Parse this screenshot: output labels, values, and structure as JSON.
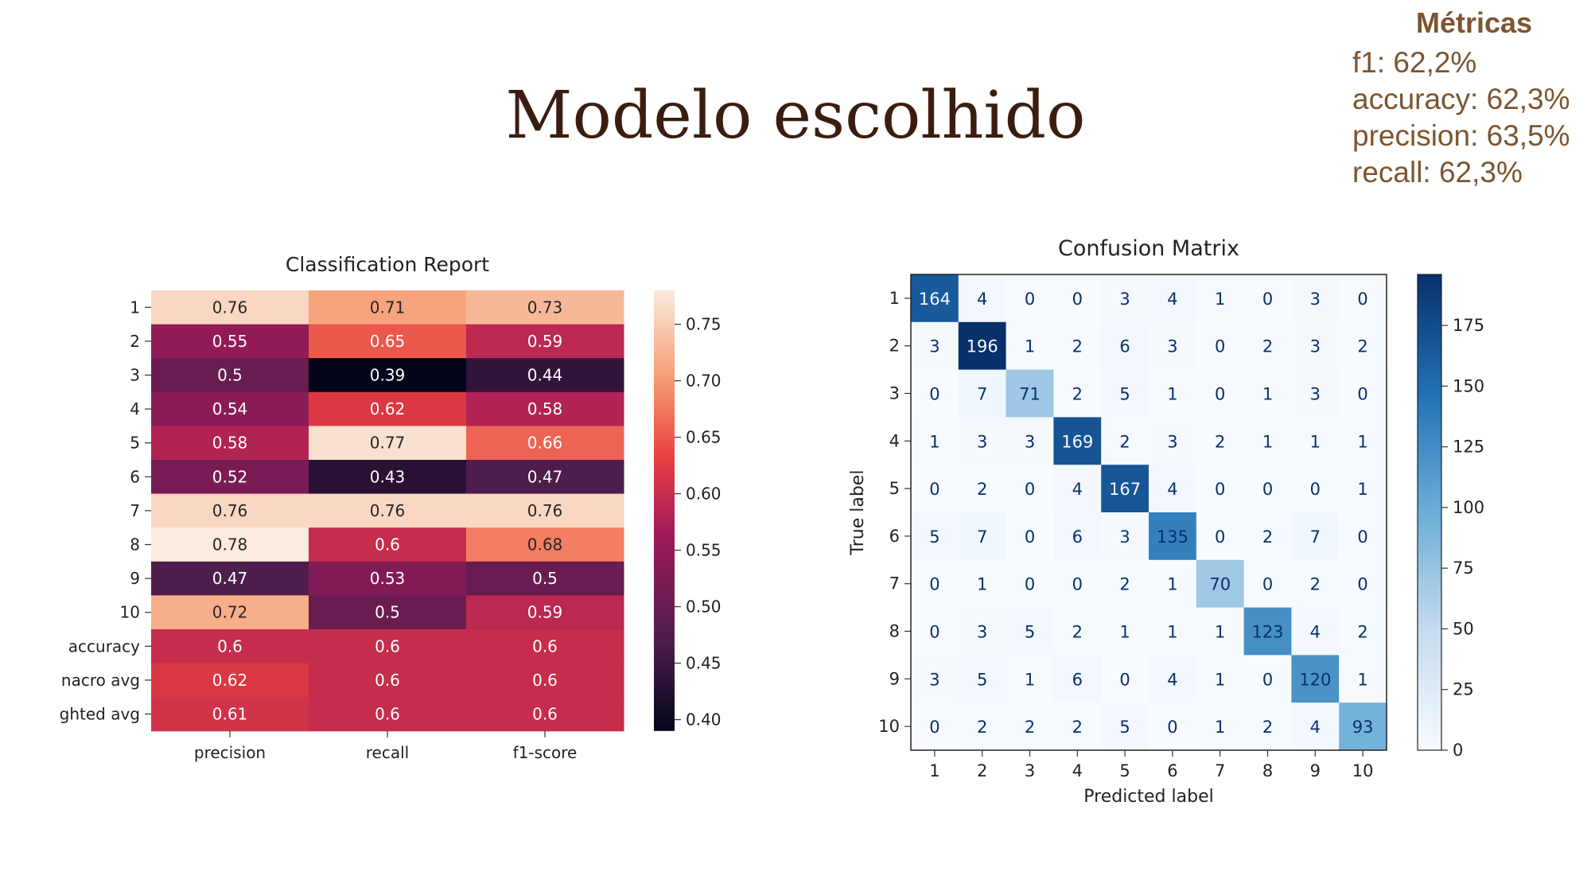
{
  "slide": {
    "title": "Modelo escolhido",
    "metrics_heading": "Métricas",
    "metrics": [
      {
        "label": "f1:",
        "value": "62,2%"
      },
      {
        "label": "accuracy:",
        "value": "62,3%"
      },
      {
        "label": "precision:",
        "value": "63,5%"
      },
      {
        "label": "recall:",
        "value": "62,3%"
      }
    ]
  },
  "chart_data": [
    {
      "type": "heatmap",
      "title": "Classification Report",
      "rows": [
        "1",
        "2",
        "3",
        "4",
        "5",
        "6",
        "7",
        "8",
        "9",
        "10",
        "accuracy",
        "macro avg",
        "weighted avg"
      ],
      "row_labels_shown": [
        "1",
        "2",
        "3",
        "4",
        "5",
        "6",
        "7",
        "8",
        "9",
        "10",
        "accuracy",
        "nacro avg",
        "ghted avg"
      ],
      "columns": [
        "precision",
        "recall",
        "f1-score"
      ],
      "values": [
        [
          0.76,
          0.71,
          0.73
        ],
        [
          0.55,
          0.65,
          0.59
        ],
        [
          0.5,
          0.39,
          0.44
        ],
        [
          0.54,
          0.62,
          0.58
        ],
        [
          0.58,
          0.77,
          0.66
        ],
        [
          0.52,
          0.43,
          0.47
        ],
        [
          0.76,
          0.76,
          0.76
        ],
        [
          0.78,
          0.6,
          0.68
        ],
        [
          0.47,
          0.53,
          0.5
        ],
        [
          0.72,
          0.5,
          0.59
        ],
        [
          0.6,
          0.6,
          0.6
        ],
        [
          0.62,
          0.6,
          0.6
        ],
        [
          0.61,
          0.6,
          0.6
        ]
      ],
      "colormap": "rocket",
      "colorbar": {
        "min": 0.39,
        "max": 0.78,
        "ticks": [
          "0.40",
          "0.45",
          "0.50",
          "0.55",
          "0.60",
          "0.65",
          "0.70",
          "0.75"
        ]
      }
    },
    {
      "type": "heatmap",
      "title": "Confusion Matrix",
      "xlabel": "Predicted label",
      "ylabel": "True label",
      "labels": [
        "1",
        "2",
        "3",
        "4",
        "5",
        "6",
        "7",
        "8",
        "9",
        "10"
      ],
      "matrix": [
        [
          164,
          4,
          0,
          0,
          3,
          4,
          1,
          0,
          3,
          0
        ],
        [
          3,
          196,
          1,
          2,
          6,
          3,
          0,
          2,
          3,
          2
        ],
        [
          0,
          7,
          71,
          2,
          5,
          1,
          0,
          1,
          3,
          0
        ],
        [
          1,
          3,
          3,
          169,
          2,
          3,
          2,
          1,
          1,
          1
        ],
        [
          0,
          2,
          0,
          4,
          167,
          4,
          0,
          0,
          0,
          1
        ],
        [
          5,
          7,
          0,
          6,
          3,
          135,
          0,
          2,
          7,
          0
        ],
        [
          0,
          1,
          0,
          0,
          2,
          1,
          70,
          0,
          2,
          0
        ],
        [
          0,
          3,
          5,
          2,
          1,
          1,
          1,
          123,
          4,
          2
        ],
        [
          3,
          5,
          1,
          6,
          0,
          4,
          1,
          0,
          120,
          1
        ],
        [
          0,
          2,
          2,
          2,
          5,
          0,
          1,
          2,
          4,
          93
        ]
      ],
      "colormap": "Blues",
      "colorbar": {
        "min": 0,
        "max": 196,
        "ticks": [
          "0",
          "25",
          "50",
          "75",
          "100",
          "125",
          "150",
          "175"
        ]
      }
    }
  ]
}
